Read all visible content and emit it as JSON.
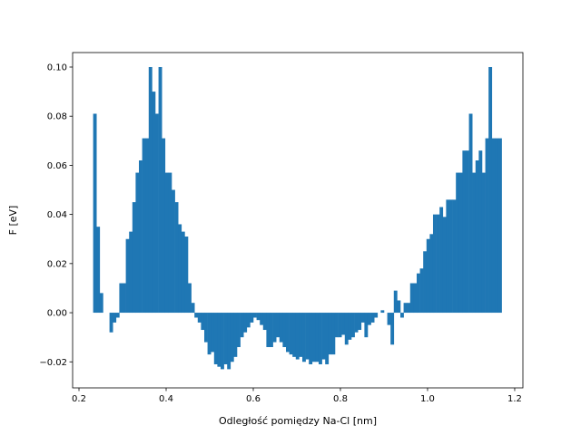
{
  "chart_data": {
    "type": "histogram",
    "xlabel": "Odległość pomiędzy Na-Cl [nm]",
    "ylabel": "F [eV]",
    "color": "#1f77b4",
    "bins": [
      0.2325,
      0.24,
      0.2475,
      0.255,
      0.2625,
      0.27,
      0.2775,
      0.285,
      0.2925,
      0.3,
      0.3075,
      0.315,
      0.3225,
      0.33,
      0.3375,
      0.345,
      0.3525,
      0.36,
      0.3675,
      0.375,
      0.3825,
      0.39,
      0.3975,
      0.405,
      0.4125,
      0.42,
      0.4275,
      0.435,
      0.4425,
      0.45,
      0.4575,
      0.465,
      0.4725,
      0.48,
      0.4875,
      0.495,
      0.5025,
      0.51,
      0.5175,
      0.525,
      0.5325,
      0.54,
      0.5475,
      0.555,
      0.5625,
      0.57,
      0.5775,
      0.585,
      0.5925,
      0.6,
      0.6075,
      0.615,
      0.6225,
      0.63,
      0.6375,
      0.645,
      0.6525,
      0.66,
      0.6675,
      0.675,
      0.6825,
      0.69,
      0.6975,
      0.705,
      0.7125,
      0.72,
      0.7275,
      0.735,
      0.7425,
      0.75,
      0.7575,
      0.765,
      0.7725,
      0.78,
      0.7875,
      0.795,
      0.8025,
      0.81,
      0.8175,
      0.825,
      0.8325,
      0.84,
      0.8475,
      0.855,
      0.8625,
      0.87,
      0.8775,
      0.885,
      0.8925,
      0.9,
      0.9075,
      0.915,
      0.9225,
      0.93,
      0.9375,
      0.945,
      0.9525,
      0.96,
      0.9675,
      0.975,
      0.9825,
      0.99,
      0.9975,
      1.005,
      1.0125,
      1.02,
      1.0275,
      1.035,
      1.0425,
      1.05,
      1.0575,
      1.065,
      1.0725,
      1.08,
      1.0875,
      1.095,
      1.1025,
      1.11,
      1.1175,
      1.125,
      1.1325,
      1.14,
      1.1475,
      1.155,
      1.1625,
      1.17
    ],
    "values": [
      0.081,
      0.035,
      0.008,
      0,
      0,
      -0.008,
      -0.004,
      -0.002,
      0.012,
      0.012,
      0.03,
      0.033,
      0.045,
      0.057,
      0.062,
      0.071,
      0.071,
      0.1,
      0.09,
      0.081,
      0.1,
      0.071,
      0.057,
      0.057,
      0.05,
      0.045,
      0.036,
      0.033,
      0.031,
      0.012,
      0.004,
      -0.002,
      -0.004,
      -0.007,
      -0.012,
      -0.017,
      -0.016,
      -0.021,
      -0.022,
      -0.023,
      -0.021,
      -0.023,
      -0.02,
      -0.018,
      -0.014,
      -0.01,
      -0.008,
      -0.006,
      -0.004,
      -0.002,
      -0.003,
      -0.005,
      -0.007,
      -0.014,
      -0.014,
      -0.012,
      -0.01,
      -0.012,
      -0.014,
      -0.016,
      -0.017,
      -0.018,
      -0.019,
      -0.018,
      -0.02,
      -0.019,
      -0.021,
      -0.02,
      -0.02,
      -0.021,
      -0.019,
      -0.021,
      -0.017,
      -0.017,
      -0.01,
      -0.01,
      -0.009,
      -0.013,
      -0.011,
      -0.01,
      -0.008,
      -0.007,
      -0.004,
      -0.01,
      -0.005,
      -0.004,
      -0.002,
      0,
      0.001,
      0,
      -0.005,
      -0.013,
      0.009,
      0.005,
      -0.002,
      0.004,
      0.004,
      0.012,
      0.012,
      0.016,
      0.018,
      0.025,
      0.03,
      0.032,
      0.04,
      0.04,
      0.043,
      0.039,
      0.046,
      0.046,
      0.046,
      0.057,
      0.057,
      0.066,
      0.066,
      0.081,
      0.057,
      0.062,
      0.066,
      0.057,
      0.071,
      0.1,
      0.071,
      0.071,
      0.071
    ],
    "xlim": [
      0.1854,
      1.2188
    ],
    "ylim": [
      -0.0306,
      0.1059
    ],
    "xticks": [
      0.2,
      0.4,
      0.6,
      0.8,
      {
        "value": 1.0,
        "label": "1.0"
      },
      1.2
    ],
    "yticks": [
      {
        "value": -0.02,
        "label": "−0.02"
      },
      {
        "value": 0,
        "label": "0.00"
      },
      {
        "value": 0.02,
        "label": "0.02"
      },
      {
        "value": 0.04,
        "label": "0.04"
      },
      {
        "value": 0.06,
        "label": "0.06"
      },
      {
        "value": 0.08,
        "label": "0.08"
      },
      {
        "value": 0.1,
        "label": "0.10"
      }
    ]
  }
}
